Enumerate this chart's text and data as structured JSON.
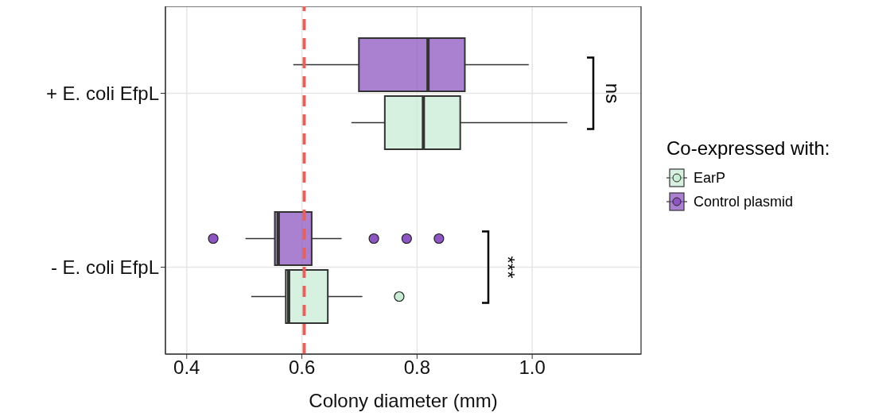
{
  "chart_data": {
    "type": "box",
    "orientation": "horizontal",
    "xlabel": "Colony diameter (mm)",
    "legend_title": "Co-expressed with:",
    "categories": [
      "+ E. coli EfpL",
      "- E. coli EfpL"
    ],
    "series": [
      {
        "name": "EarP",
        "color": "#c8ecd4",
        "boxes": [
          {
            "low": 0.686,
            "q1": 0.744,
            "median": 0.811,
            "q3": 0.875,
            "high": 1.061
          },
          {
            "low": 0.512,
            "q1": 0.572,
            "median": 0.577,
            "q3": 0.645,
            "high": 0.705,
            "outliers": [
              0.769
            ]
          }
        ]
      },
      {
        "name": "Control plasmid",
        "color": "#8e56c2",
        "boxes": [
          {
            "low": 0.585,
            "q1": 0.699,
            "median": 0.819,
            "q3": 0.883,
            "high": 0.994
          },
          {
            "low": 0.502,
            "q1": 0.553,
            "median": 0.559,
            "q3": 0.617,
            "high": 0.669,
            "outliers": [
              0.446,
              0.725,
              0.782,
              0.838
            ]
          }
        ]
      }
    ],
    "xlim": [
      0.363,
      1.189
    ],
    "xticks": [
      0.4,
      0.6,
      0.8,
      {
        "value": 1,
        "label": "1.0"
      }
    ],
    "ref_lines": [
      {
        "axis": "x",
        "value": 0.604,
        "color": "#e8605a",
        "line_style": "dashed"
      }
    ],
    "annotations": [
      "ns",
      "***"
    ],
    "grid": true,
    "legend": "right"
  }
}
